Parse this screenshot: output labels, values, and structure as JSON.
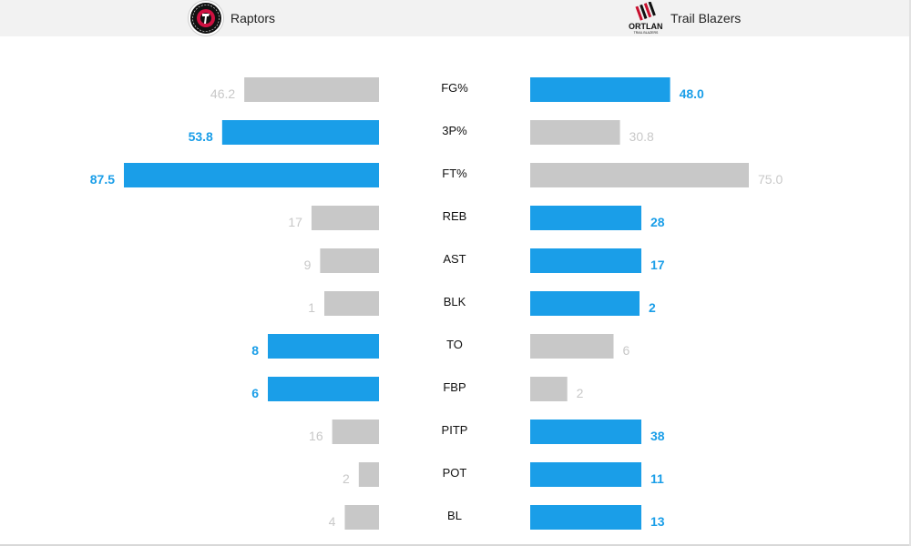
{
  "teams": {
    "away": {
      "name": "Raptors",
      "logo_icon": "raptors-logo-icon",
      "logo_text": "TORONTO RAPTORS"
    },
    "home": {
      "name": "Trail Blazers",
      "logo_icon": "trail-blazers-logo-icon",
      "logo_text": "PORTLAND",
      "logo_subtext": "TRAIL BLAZERS"
    }
  },
  "colors": {
    "winner": "#1a9ee8",
    "loser": "#c8c8c8",
    "topbar": "#f2f2f2"
  },
  "chart_data": {
    "type": "bar",
    "orientation": "horizontal-butterfly",
    "categories": [
      "FG%",
      "3P%",
      "FT%",
      "REB",
      "AST",
      "BLK",
      "TO",
      "FBP",
      "PITP",
      "POT",
      "BL"
    ],
    "series": [
      {
        "name": "Raptors",
        "side": "left",
        "values": [
          46.2,
          53.8,
          87.5,
          17,
          9,
          1,
          8,
          6,
          16,
          2,
          4
        ],
        "labels": [
          "46.2",
          "53.8",
          "87.5",
          "17",
          "9",
          "1",
          "8",
          "6",
          "16",
          "2",
          "4"
        ],
        "highlight": [
          false,
          true,
          true,
          false,
          false,
          false,
          true,
          true,
          false,
          false,
          false
        ]
      },
      {
        "name": "Trail Blazers",
        "side": "right",
        "values": [
          48.0,
          30.8,
          75.0,
          28,
          17,
          2,
          6,
          2,
          38,
          11,
          13
        ],
        "labels": [
          "48.0",
          "30.8",
          "75.0",
          "28",
          "17",
          "2",
          "6",
          "2",
          "38",
          "11",
          "13"
        ],
        "highlight": [
          true,
          false,
          false,
          true,
          true,
          true,
          false,
          false,
          true,
          true,
          true
        ]
      }
    ]
  }
}
